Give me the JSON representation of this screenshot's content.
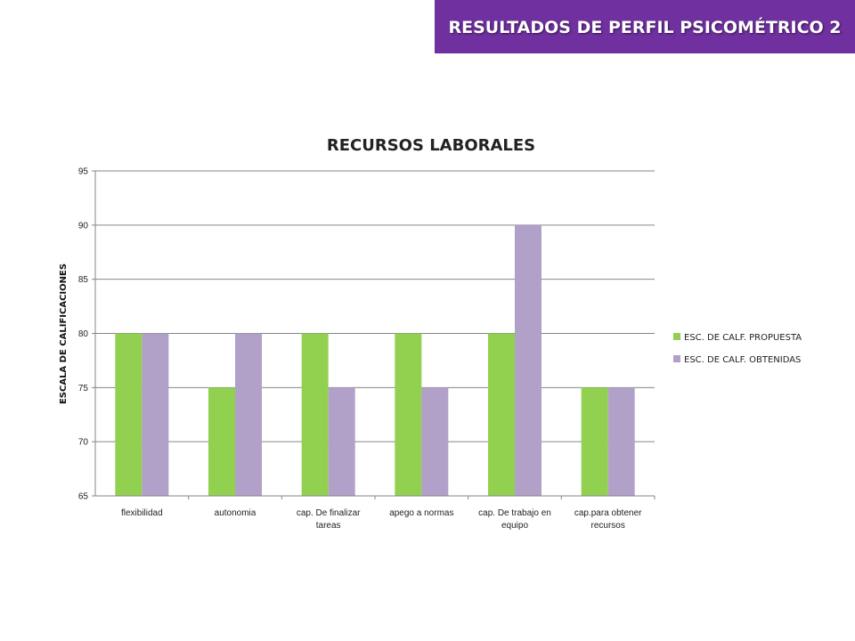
{
  "header": {
    "title": "RESULTADOS DE  PERFIL PSICOMÉTRICO 2"
  },
  "colors": {
    "banner": "#7030a0",
    "propuesta": "#92d050",
    "obtenidas": "#b1a0c7",
    "grid": "#868686"
  },
  "chart_data": {
    "type": "bar",
    "title": "RECURSOS LABORALES",
    "xlabel": "",
    "ylabel": "ESCALA DE CALIFICACIONES",
    "ylim": [
      65,
      95
    ],
    "yticks": [
      65,
      70,
      75,
      80,
      85,
      90,
      95
    ],
    "grid": true,
    "legend_position": "right",
    "categories": [
      [
        "flexibilidad"
      ],
      [
        "autonomia"
      ],
      [
        "cap. De finalizar",
        "tareas"
      ],
      [
        "apego a normas"
      ],
      [
        "cap. De trabajo en",
        "equipo"
      ],
      [
        "cap.para obtener",
        "recursos"
      ]
    ],
    "series": [
      {
        "name": "ESC. DE CALF. PROPUESTA",
        "color": "#92d050",
        "values": [
          80,
          75,
          80,
          80,
          80,
          75
        ]
      },
      {
        "name": "ESC. DE CALF. OBTENIDAS",
        "color": "#b1a0c7",
        "values": [
          80,
          80,
          75,
          75,
          90,
          75
        ]
      }
    ]
  }
}
